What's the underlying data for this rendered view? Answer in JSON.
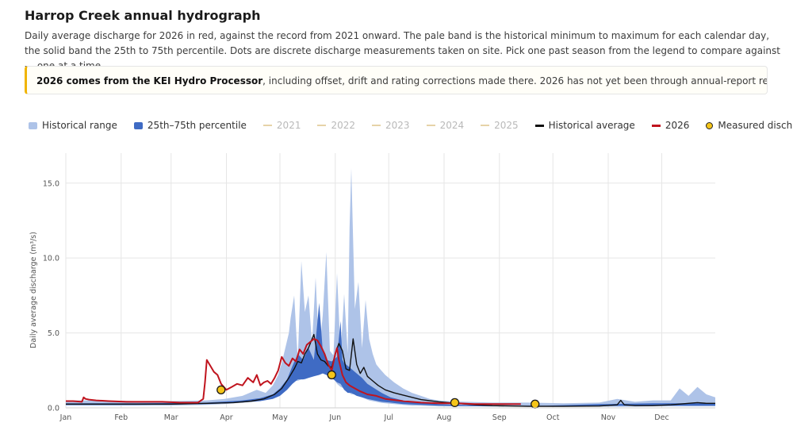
{
  "header": {
    "title": "Harrop Creek annual hydrograph",
    "description": "Daily average discharge for 2026 in red, against the record from 2021 onward. The pale band is the historical minimum to maximum for each calendar day, the solid band the 25th to 75th percentile. Dots are discrete discharge measurements taken on site. Pick one past season from the legend to compare against — one at a time."
  },
  "notice": {
    "bold": "2026 comes from the KEI Hydro Processor",
    "text": ", including offset, drift and rating corrections made there. 2026 has not yet been through annual-report review; expect it to change.",
    "accent_color": "#f0b400"
  },
  "legend": [
    {
      "label": "Historical range",
      "kind": "box",
      "color": "#aec3e8",
      "active": true
    },
    {
      "label": "25th–75th percentile",
      "kind": "box",
      "color": "#3f6bc4",
      "active": true
    },
    {
      "label": "2021",
      "kind": "line",
      "color": "#e6d3a8",
      "active": false
    },
    {
      "label": "2022",
      "kind": "line",
      "color": "#e6d3a8",
      "active": false
    },
    {
      "label": "2023",
      "kind": "line",
      "color": "#e6d3a8",
      "active": false
    },
    {
      "label": "2024",
      "kind": "line",
      "color": "#e6d3a8",
      "active": false
    },
    {
      "label": "2025",
      "kind": "line",
      "color": "#e6d3a8",
      "active": false
    },
    {
      "label": "Historical average",
      "kind": "line",
      "color": "#111111",
      "active": true
    },
    {
      "label": "2026",
      "kind": "line",
      "color": "#c0141e",
      "active": true
    },
    {
      "label": "Measured discharge",
      "kind": "dot",
      "color": "#f5c518",
      "active": true
    }
  ],
  "chart_data": {
    "type": "area",
    "title": "",
    "xlabel": "",
    "ylabel": "Daily average discharge (m³/s)",
    "ylim": [
      0,
      17
    ],
    "yticks": [
      0,
      5,
      10,
      15
    ],
    "ytick_labels": [
      "0.0",
      "5.0",
      "10.0",
      "15.0"
    ],
    "xlim_day": [
      1,
      365
    ],
    "xticks": [
      {
        "label": "Jan",
        "day": 1
      },
      {
        "label": "Feb",
        "day": 32
      },
      {
        "label": "Mar",
        "day": 60
      },
      {
        "label": "Apr",
        "day": 91
      },
      {
        "label": "May",
        "day": 121
      },
      {
        "label": "Jun",
        "day": 152
      },
      {
        "label": "Jul",
        "day": 182
      },
      {
        "label": "Aug",
        "day": 213
      },
      {
        "label": "Sep",
        "day": 244
      },
      {
        "label": "Oct",
        "day": 274
      },
      {
        "label": "Nov",
        "day": 305
      },
      {
        "label": "Dec",
        "day": 335
      }
    ],
    "grid": true,
    "legend_position": "top",
    "colors": {
      "range": "#aec3e8",
      "iqr": "#3f6bc4",
      "average": "#111111",
      "current": "#c0141e",
      "measured": "#f5c518"
    },
    "historical_range": {
      "day": [
        1,
        20,
        40,
        60,
        80,
        90,
        100,
        108,
        113,
        117,
        120,
        122,
        124,
        126,
        127,
        129,
        131,
        133,
        135,
        137,
        139,
        141,
        143,
        145,
        147,
        149,
        151,
        153,
        155,
        157,
        159,
        160,
        161,
        163,
        165,
        167,
        169,
        171,
        173,
        175,
        177,
        180,
        185,
        190,
        195,
        200,
        205,
        210,
        215,
        225,
        240,
        260,
        280,
        300,
        310,
        320,
        330,
        340,
        345,
        350,
        355,
        360,
        365
      ],
      "min": [
        0.15,
        0.15,
        0.15,
        0.15,
        0.2,
        0.25,
        0.35,
        0.5,
        0.6,
        0.8,
        0.9,
        1.0,
        1.2,
        1.5,
        1.7,
        1.8,
        1.8,
        1.9,
        1.9,
        2.0,
        2.1,
        2.2,
        2.3,
        2.4,
        2.3,
        2.2,
        2.0,
        1.6,
        1.4,
        1.3,
        1.2,
        1.0,
        0.9,
        0.9,
        0.8,
        0.7,
        0.6,
        0.5,
        0.45,
        0.4,
        0.35,
        0.3,
        0.25,
        0.2,
        0.15,
        0.15,
        0.12,
        0.1,
        0.1,
        0.1,
        0.1,
        0.08,
        0.08,
        0.08,
        0.08,
        0.08,
        0.1,
        0.1,
        0.1,
        0.1,
        0.1,
        0.1,
        0.1
      ],
      "max": [
        0.5,
        0.5,
        0.45,
        0.45,
        0.5,
        0.6,
        0.8,
        1.2,
        1.0,
        1.5,
        2.2,
        3.0,
        4.0,
        5.0,
        6.0,
        7.5,
        3.2,
        9.8,
        6.4,
        7.5,
        4.3,
        8.7,
        3.6,
        6.2,
        10.4,
        3.8,
        3.5,
        9.0,
        3.6,
        7.6,
        3.6,
        12.0,
        16.0,
        6.6,
        8.4,
        4.0,
        7.2,
        4.6,
        3.6,
        2.9,
        2.6,
        2.2,
        1.7,
        1.3,
        1.0,
        0.8,
        0.6,
        0.5,
        0.45,
        0.4,
        0.35,
        0.35,
        0.3,
        0.35,
        0.6,
        0.4,
        0.5,
        0.5,
        1.3,
        0.8,
        1.4,
        0.9,
        0.7
      ]
    },
    "percentile_band": {
      "day": [
        1,
        40,
        80,
        100,
        110,
        117,
        121,
        125,
        128,
        131,
        134,
        137,
        140,
        143,
        145,
        147,
        150,
        153,
        155,
        156,
        157,
        159,
        161,
        164,
        167,
        170,
        174,
        178,
        183,
        190,
        200,
        210,
        220,
        240,
        270,
        300,
        330,
        365
      ],
      "p25": [
        0.2,
        0.2,
        0.25,
        0.35,
        0.45,
        0.6,
        0.8,
        1.2,
        1.6,
        1.9,
        1.9,
        2.0,
        2.1,
        2.2,
        2.3,
        2.2,
        2.0,
        1.7,
        1.6,
        1.4,
        1.2,
        1.0,
        1.0,
        0.8,
        0.7,
        0.6,
        0.5,
        0.4,
        0.35,
        0.25,
        0.2,
        0.15,
        0.12,
        0.1,
        0.1,
        0.12,
        0.15,
        0.15
      ],
      "p75": [
        0.3,
        0.3,
        0.35,
        0.5,
        0.65,
        0.9,
        1.3,
        1.9,
        2.8,
        3.6,
        3.2,
        4.0,
        3.2,
        7.0,
        3.8,
        3.2,
        3.1,
        3.4,
        5.8,
        3.2,
        3.0,
        2.8,
        2.6,
        2.3,
        2.0,
        1.6,
        1.3,
        1.0,
        0.7,
        0.5,
        0.35,
        0.25,
        0.2,
        0.15,
        0.15,
        0.25,
        0.3,
        0.3
      ]
    },
    "historical_average": {
      "day": [
        1,
        30,
        60,
        80,
        95,
        105,
        112,
        118,
        122,
        126,
        129,
        131,
        133,
        135,
        137,
        140,
        142,
        144,
        146,
        148,
        150,
        152,
        154,
        156,
        158,
        160,
        162,
        164,
        166,
        168,
        170,
        173,
        176,
        180,
        185,
        190,
        200,
        210,
        220,
        230,
        240,
        260,
        280,
        300,
        310,
        312,
        314,
        320,
        330,
        340,
        350,
        355,
        360,
        365
      ],
      "value": [
        0.25,
        0.25,
        0.25,
        0.3,
        0.35,
        0.45,
        0.6,
        0.9,
        1.3,
        2.0,
        2.6,
        3.1,
        3.0,
        3.6,
        4.0,
        4.9,
        3.6,
        3.2,
        3.1,
        2.8,
        2.7,
        3.6,
        4.3,
        3.8,
        2.6,
        2.5,
        4.6,
        2.9,
        2.3,
        2.7,
        2.1,
        1.8,
        1.5,
        1.2,
        1.0,
        0.85,
        0.55,
        0.4,
        0.3,
        0.2,
        0.15,
        0.1,
        0.1,
        0.12,
        0.2,
        0.5,
        0.2,
        0.15,
        0.15,
        0.2,
        0.3,
        0.35,
        0.3,
        0.3
      ]
    },
    "series_2026": {
      "day": [
        1,
        5,
        10,
        11,
        12,
        14,
        18,
        25,
        35,
        45,
        55,
        65,
        75,
        78,
        79,
        80,
        82,
        84,
        86,
        88,
        91,
        94,
        97,
        100,
        103,
        106,
        108,
        110,
        112,
        114,
        116,
        118,
        120,
        122,
        124,
        126,
        128,
        130,
        132,
        134,
        136,
        138,
        140,
        142,
        144,
        146,
        148,
        150,
        152,
        153,
        154,
        156,
        158,
        160,
        163,
        166,
        170,
        175,
        180,
        190,
        200,
        210,
        220,
        230,
        240,
        250,
        256
      ],
      "value": [
        0.45,
        0.45,
        0.4,
        0.7,
        0.6,
        0.55,
        0.5,
        0.45,
        0.4,
        0.4,
        0.4,
        0.35,
        0.35,
        0.6,
        1.7,
        3.2,
        2.8,
        2.4,
        2.2,
        1.6,
        1.2,
        1.4,
        1.6,
        1.5,
        2.0,
        1.7,
        2.2,
        1.5,
        1.7,
        1.8,
        1.6,
        2.0,
        2.5,
        3.4,
        3.0,
        2.8,
        3.3,
        3.1,
        3.9,
        3.6,
        4.2,
        4.4,
        4.6,
        4.5,
        4.1,
        3.6,
        2.9,
        2.5,
        3.6,
        4.0,
        3.2,
        2.2,
        1.7,
        1.5,
        1.3,
        1.1,
        0.9,
        0.8,
        0.6,
        0.45,
        0.35,
        0.3,
        0.3,
        0.25,
        0.25,
        0.25,
        0.25
      ]
    },
    "measured_discharge": {
      "day": [
        88,
        150,
        219,
        264
      ],
      "value": [
        1.2,
        2.2,
        0.35,
        0.25
      ]
    }
  }
}
